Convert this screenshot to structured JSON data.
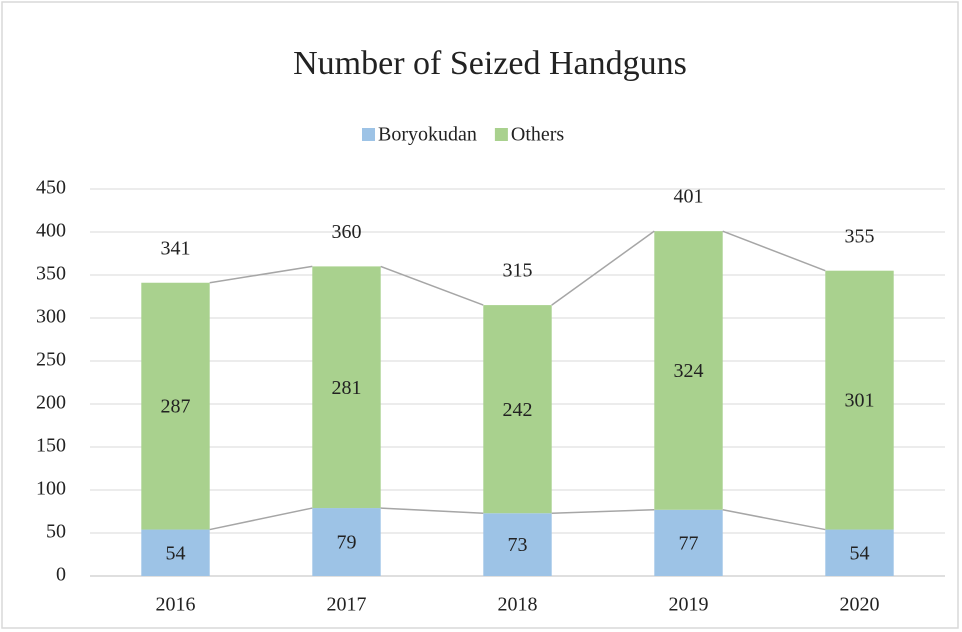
{
  "chart_data": {
    "type": "bar",
    "stacked": true,
    "title": "Number of Seized Handguns",
    "categories": [
      "2016",
      "2017",
      "2018",
      "2019",
      "2020"
    ],
    "series": [
      {
        "name": "Boryokudan",
        "color": "#9dc3e6",
        "values": [
          54,
          79,
          73,
          77,
          54
        ]
      },
      {
        "name": "Others",
        "color": "#a9d18e",
        "values": [
          287,
          281,
          242,
          324,
          301
        ]
      }
    ],
    "totals": [
      341,
      360,
      315,
      401,
      355
    ],
    "ylim": [
      0,
      450
    ],
    "yticks": [
      0,
      50,
      100,
      150,
      200,
      250,
      300,
      350,
      400,
      450
    ],
    "grid": true,
    "legend": "top"
  }
}
